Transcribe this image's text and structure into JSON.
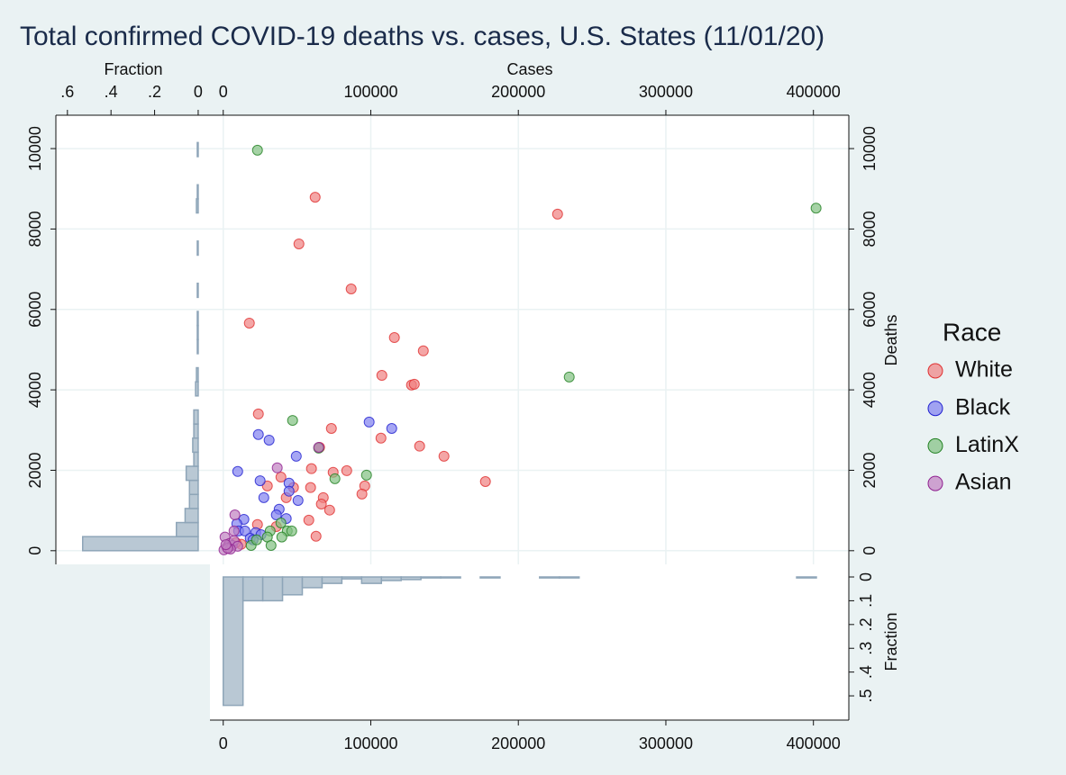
{
  "chart_data": [
    {
      "type": "scatter",
      "title": "Total confirmed COVID-19 deaths vs. cases, U.S. States (11/01/20)",
      "x_label": "Cases",
      "y_label": "Deaths",
      "legend_title": "Race",
      "grid": true,
      "xlim": [
        -9000,
        424000
      ],
      "ylim": [
        -340,
        10830
      ],
      "xticks": [
        0,
        100000,
        200000,
        300000,
        400000
      ],
      "yticks": [
        0,
        2000,
        4000,
        6000,
        8000,
        10000
      ],
      "series": [
        {
          "name": "White",
          "color": "#f08080",
          "stroke": "#e03030",
          "x": [
            62300,
            226600,
            51300,
            86700,
            17700,
            116000,
            135600,
            107500,
            127600,
            129500,
            23800,
            73300,
            133100,
            106900,
            65300,
            149600,
            177700,
            59800,
            83700,
            74500,
            95900,
            94000,
            39100,
            29900,
            59200,
            47600,
            67800,
            66500,
            72100,
            42700,
            58000,
            36000,
            23200,
            62900,
            12200,
            8500
          ],
          "y": [
            8790,
            8370,
            7630,
            6510,
            5660,
            5300,
            4970,
            4360,
            4120,
            4140,
            3400,
            3040,
            2600,
            2800,
            2570,
            2350,
            1720,
            2040,
            1990,
            1950,
            1610,
            1410,
            1830,
            1610,
            1570,
            1570,
            1320,
            1160,
            1010,
            1320,
            760,
            600,
            650,
            360,
            160,
            200
          ]
        },
        {
          "name": "Black",
          "color": "#8080f0",
          "stroke": "#2020d0",
          "x": [
            98900,
            114200,
            23800,
            31100,
            9800,
            49500,
            25000,
            44600,
            44600,
            50700,
            27500,
            37900,
            36000,
            14000,
            9200,
            42700,
            10400,
            14700,
            22000,
            25600,
            18300,
            20200
          ],
          "y": [
            3200,
            3040,
            2890,
            2750,
            1970,
            2350,
            1740,
            1680,
            1480,
            1250,
            1320,
            1030,
            890,
            780,
            670,
            800,
            490,
            490,
            450,
            400,
            310,
            270
          ]
        },
        {
          "name": "LatinX",
          "color": "#80c080",
          "stroke": "#208020",
          "x": [
            23200,
            401800,
            234500,
            47000,
            97100,
            75700,
            64700,
            39100,
            43400,
            46400,
            31800,
            39700,
            29900,
            32400,
            18900,
            22600
          ],
          "y": [
            9960,
            8520,
            4320,
            3240,
            1880,
            1790,
            2550,
            690,
            490,
            490,
            490,
            340,
            340,
            130,
            130,
            270
          ]
        },
        {
          "name": "Asian",
          "color": "#c080c0",
          "stroke": "#902090",
          "x": [
            64700,
            36600,
            7900,
            7300,
            1200,
            2500,
            4300,
            6100,
            500,
            7300,
            9800,
            4900,
            3000,
            1800
          ],
          "y": [
            2570,
            2060,
            890,
            490,
            340,
            90,
            180,
            130,
            20,
            250,
            110,
            40,
            60,
            150
          ]
        }
      ]
    },
    {
      "type": "histogram",
      "orientation": "horizontal",
      "axis_label": "Fraction",
      "color": "#b9c8d4",
      "stroke": "#8ea5b8",
      "xlim": [
        0.653,
        -0.054
      ],
      "xticks": [
        {
          "value": 0.6,
          "label": ".6"
        },
        {
          "value": 0.4,
          "label": ".4"
        },
        {
          "value": 0.2,
          "label": ".2"
        },
        0
      ],
      "bins": [
        0,
        350,
        700,
        1050,
        1400,
        1750,
        2100,
        2450,
        2800,
        3150,
        3500,
        3850,
        4200,
        4550,
        4900,
        5250,
        5600,
        5950,
        6300,
        6650,
        7000,
        7350,
        7700,
        8050,
        8400,
        8750,
        9100,
        9450,
        9800,
        10150
      ],
      "values": [
        0.53,
        0.1,
        0.06,
        0.04,
        0.04,
        0.055,
        0.02,
        0.025,
        0.02,
        0.02,
        0,
        0.012,
        0.008,
        0,
        0.004,
        0.004,
        0.004,
        0,
        0.004,
        0,
        0,
        0.004,
        0,
        0,
        0.008,
        0.004,
        0,
        0,
        0.004
      ]
    },
    {
      "type": "histogram",
      "orientation": "vertical",
      "axis_label": "Fraction",
      "color": "#b9c8d4",
      "stroke": "#8ea5b8",
      "ylim": [
        -0.053,
        0.602
      ],
      "yticks": [
        0,
        {
          "value": 0.1,
          "label": ".1"
        },
        {
          "value": 0.2,
          "label": ".2"
        },
        {
          "value": 0.3,
          "label": ".3"
        },
        {
          "value": 0.4,
          "label": ".4"
        },
        {
          "value": 0.5,
          "label": ".5"
        }
      ],
      "bins": [
        0,
        13400,
        26800,
        40200,
        53600,
        67000,
        80400,
        93800,
        107200,
        120600,
        134000,
        147400,
        160800,
        174200,
        187600,
        201000,
        214400,
        227800,
        241200,
        254600,
        268000,
        281400,
        294800,
        308200,
        321600,
        335000,
        348400,
        361800,
        375200,
        388600,
        402000
      ],
      "values": [
        0.54,
        0.1,
        0.1,
        0.075,
        0.045,
        0.027,
        0.008,
        0.027,
        0.015,
        0.011,
        0.004,
        0.004,
        0,
        0.004,
        0,
        0,
        0.004,
        0.004,
        0,
        0,
        0,
        0,
        0,
        0,
        0,
        0,
        0,
        0,
        0,
        0.004
      ]
    }
  ]
}
